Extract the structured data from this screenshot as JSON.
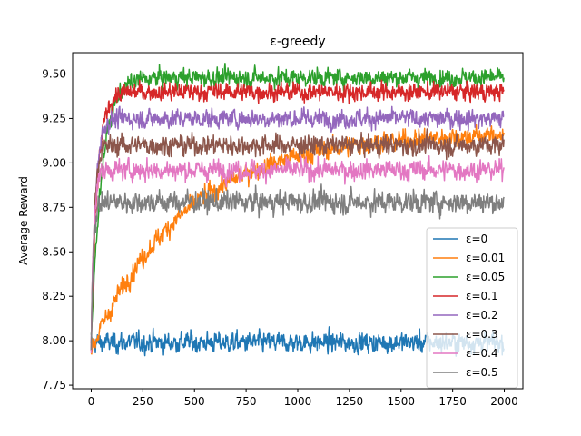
{
  "chart_data": {
    "type": "line",
    "title": "ε-greedy",
    "xlabel": "",
    "ylabel": "Average Reward",
    "xlim": [
      -90,
      2090
    ],
    "ylim": [
      7.73,
      9.62
    ],
    "x_ticks": [
      0,
      250,
      500,
      750,
      1000,
      1250,
      1500,
      1750,
      2000
    ],
    "y_ticks": [
      7.75,
      8.0,
      8.25,
      8.5,
      8.75,
      9.0,
      9.25,
      9.5
    ],
    "x_tick_labels": [
      "0",
      "250",
      "500",
      "750",
      "1000",
      "1250",
      "1500",
      "1750",
      "2000"
    ],
    "y_tick_labels": [
      "7.75",
      "8.00",
      "8.25",
      "8.50",
      "8.75",
      "9.00",
      "9.25",
      "9.50"
    ],
    "grid": false,
    "legend_position": "lower-right",
    "steps": 2000,
    "series": [
      {
        "name": "ε=0",
        "color": "#1f77b4",
        "start": 7.95,
        "plateau": 7.99,
        "tau": 1,
        "noise": 0.045
      },
      {
        "name": "ε=0.01",
        "color": "#ff7f0e",
        "start": 7.95,
        "plateau": 9.17,
        "tau": 450,
        "noise": 0.045
      },
      {
        "name": "ε=0.05",
        "color": "#2ca02c",
        "start": 7.98,
        "plateau": 9.48,
        "tau": 50,
        "noise": 0.04
      },
      {
        "name": "ε=0.1",
        "color": "#d62728",
        "start": 7.98,
        "plateau": 9.4,
        "tau": 30,
        "noise": 0.04
      },
      {
        "name": "ε=0.2",
        "color": "#9467bd",
        "start": 7.98,
        "plateau": 9.25,
        "tau": 20,
        "noise": 0.042
      },
      {
        "name": "ε=0.3",
        "color": "#8c564b",
        "start": 7.98,
        "plateau": 9.1,
        "tau": 15,
        "noise": 0.045
      },
      {
        "name": "ε=0.4",
        "color": "#e377c2",
        "start": 7.98,
        "plateau": 8.96,
        "tau": 12,
        "noise": 0.045
      },
      {
        "name": "ε=0.5",
        "color": "#7f7f7f",
        "start": 7.98,
        "plateau": 8.78,
        "tau": 10,
        "noise": 0.05
      }
    ]
  }
}
